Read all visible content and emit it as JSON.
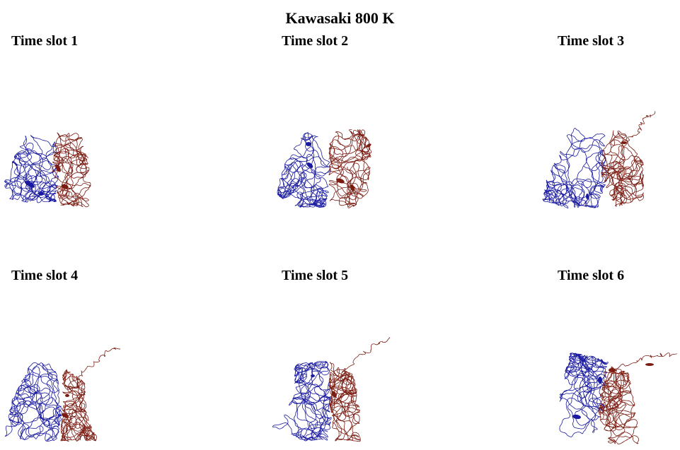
{
  "title": "Kawasaki 800 K",
  "colors": {
    "domain_a": "#1a1aa0",
    "domain_b": "#7a1c12",
    "background": "#ffffff"
  },
  "slots": [
    {
      "label": "Time slot 1"
    },
    {
      "label": "Time slot 2"
    },
    {
      "label": "Time slot 3"
    },
    {
      "label": "Time slot 4"
    },
    {
      "label": "Time slot 5"
    },
    {
      "label": "Time slot 6"
    }
  ]
}
